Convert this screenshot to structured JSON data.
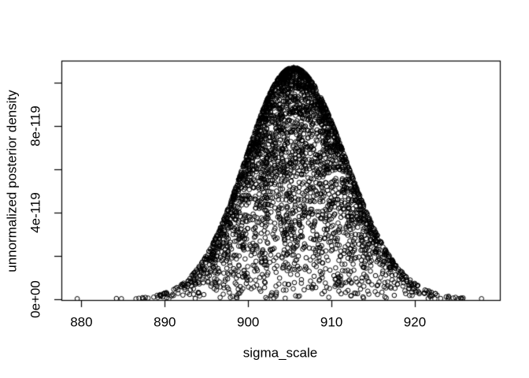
{
  "window": {
    "background": "#ffffff",
    "foreground": "#000000"
  },
  "chart_data": {
    "type": "scatter",
    "title": "",
    "xlabel": "sigma_scale",
    "ylabel": "unnormalized posterior density",
    "xlim": [
      877.6,
      930.2
    ],
    "ylim": [
      -4.1e-121,
      1.102e-118
    ],
    "x_ticks": [
      880,
      890,
      900,
      910,
      920
    ],
    "x_tick_labels": [
      "880",
      "890",
      "900",
      "910",
      "920"
    ],
    "y_ticks": [
      0,
      2e-119,
      4e-119,
      6e-119,
      8e-119,
      1e-118
    ],
    "y_tick_labels": [
      "0e+00",
      "",
      "4e-119",
      "",
      "8e-119",
      ""
    ],
    "grid": false,
    "legend": null,
    "marker": {
      "shape": "open-circle",
      "radius_px": 2.8,
      "color": "#000000"
    },
    "point_cloud": {
      "description": "Posterior-sample cloud: x = sigma_scale samples, y = unnormalized joint posterior density; points fill area under a bell-shaped envelope, densest along the envelope.",
      "n_points": 3200,
      "seed": 1234567,
      "mode": 905.4,
      "sd_left": 5.7,
      "sd_right": 6.3,
      "peak_density": 1.07e-118
    },
    "outlier_points": [
      [
        879.5,
        2e-121
      ],
      [
        884.2,
        3e-121
      ],
      [
        884.8,
        2e-121
      ],
      [
        886.9,
        4e-121
      ],
      [
        887.4,
        2.5e-121
      ],
      [
        888.0,
        5e-121
      ],
      [
        921.6,
        3e-121
      ],
      [
        922.4,
        2e-121
      ],
      [
        923.1,
        3e-121
      ],
      [
        924.0,
        2.5e-121
      ],
      [
        925.2,
        2e-121
      ],
      [
        925.5,
        3.5e-121
      ],
      [
        928.0,
        2e-121
      ]
    ]
  }
}
